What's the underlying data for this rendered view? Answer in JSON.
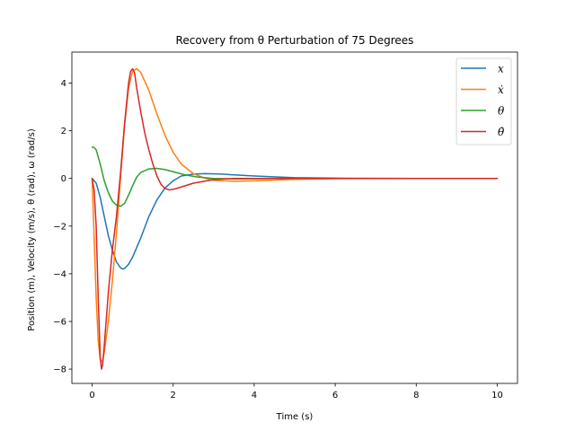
{
  "chart_data": {
    "type": "line",
    "title": "Recovery from θ Perturbation of 75 Degrees",
    "xlabel": "Time (s)",
    "ylabel": "Position (m), Velocity (m/s), θ (rad), ω (rad/s)",
    "xlim": [
      -0.5,
      10.5
    ],
    "ylim": [
      -8.6,
      5.3
    ],
    "xticks": [
      0,
      2,
      4,
      6,
      8,
      10
    ],
    "yticks": [
      -8,
      -6,
      -4,
      -2,
      0,
      2,
      4
    ],
    "xtick_labels": [
      "0",
      "2",
      "4",
      "6",
      "8",
      "10"
    ],
    "ytick_labels": [
      "−8",
      "−6",
      "−4",
      "−2",
      "0",
      "2",
      "4"
    ],
    "grid": false,
    "legend_position": "top-right",
    "series": [
      {
        "name": "x",
        "color": "#1f77b4",
        "points": [
          [
            0,
            0
          ],
          [
            0.1,
            -0.2
          ],
          [
            0.2,
            -0.8
          ],
          [
            0.3,
            -1.6
          ],
          [
            0.4,
            -2.4
          ],
          [
            0.5,
            -3.0
          ],
          [
            0.6,
            -3.5
          ],
          [
            0.7,
            -3.75
          ],
          [
            0.75,
            -3.8
          ],
          [
            0.8,
            -3.78
          ],
          [
            0.9,
            -3.6
          ],
          [
            1.0,
            -3.3
          ],
          [
            1.2,
            -2.5
          ],
          [
            1.4,
            -1.6
          ],
          [
            1.6,
            -0.9
          ],
          [
            1.8,
            -0.4
          ],
          [
            2.0,
            -0.1
          ],
          [
            2.2,
            0.1
          ],
          [
            2.5,
            0.18
          ],
          [
            2.8,
            0.2
          ],
          [
            3.2,
            0.18
          ],
          [
            4.0,
            0.1
          ],
          [
            5.0,
            0.03
          ],
          [
            6.0,
            0.01
          ],
          [
            8.0,
            0.0
          ],
          [
            10.0,
            0.0
          ]
        ]
      },
      {
        "name": "ẋ",
        "color": "#ff7f0e",
        "points": [
          [
            0,
            0
          ],
          [
            0.05,
            -2.5
          ],
          [
            0.1,
            -5.0
          ],
          [
            0.15,
            -6.8
          ],
          [
            0.2,
            -7.6
          ],
          [
            0.25,
            -7.7
          ],
          [
            0.3,
            -7.3
          ],
          [
            0.4,
            -6.0
          ],
          [
            0.5,
            -4.3
          ],
          [
            0.6,
            -2.3
          ],
          [
            0.7,
            0.0
          ],
          [
            0.8,
            2.2
          ],
          [
            0.9,
            3.8
          ],
          [
            1.0,
            4.5
          ],
          [
            1.1,
            4.6
          ],
          [
            1.2,
            4.45
          ],
          [
            1.4,
            3.7
          ],
          [
            1.6,
            2.7
          ],
          [
            1.8,
            1.8
          ],
          [
            2.0,
            1.1
          ],
          [
            2.2,
            0.6
          ],
          [
            2.5,
            0.2
          ],
          [
            2.8,
            0.0
          ],
          [
            3.0,
            -0.08
          ],
          [
            3.5,
            -0.12
          ],
          [
            4.0,
            -0.1
          ],
          [
            5.0,
            -0.04
          ],
          [
            6.0,
            -0.01
          ],
          [
            8.0,
            0.0
          ],
          [
            10.0,
            0.0
          ]
        ]
      },
      {
        "name": "θ",
        "color": "#2ca02c",
        "points": [
          [
            0,
            1.31
          ],
          [
            0.05,
            1.3
          ],
          [
            0.1,
            1.2
          ],
          [
            0.2,
            0.6
          ],
          [
            0.3,
            -0.1
          ],
          [
            0.4,
            -0.6
          ],
          [
            0.5,
            -0.95
          ],
          [
            0.6,
            -1.12
          ],
          [
            0.7,
            -1.17
          ],
          [
            0.8,
            -1.05
          ],
          [
            0.9,
            -0.7
          ],
          [
            1.0,
            -0.3
          ],
          [
            1.1,
            0.05
          ],
          [
            1.2,
            0.25
          ],
          [
            1.4,
            0.4
          ],
          [
            1.6,
            0.42
          ],
          [
            1.8,
            0.37
          ],
          [
            2.0,
            0.28
          ],
          [
            2.3,
            0.15
          ],
          [
            2.6,
            0.06
          ],
          [
            3.0,
            0.0
          ],
          [
            3.5,
            -0.02
          ],
          [
            4.0,
            -0.01
          ],
          [
            5.0,
            0.0
          ],
          [
            10.0,
            0.0
          ]
        ]
      },
      {
        "name": "θ̇",
        "color": "#d62728",
        "points": [
          [
            0,
            0
          ],
          [
            0.05,
            -0.5
          ],
          [
            0.1,
            -2.0
          ],
          [
            0.15,
            -5.0
          ],
          [
            0.2,
            -7.5
          ],
          [
            0.23,
            -8.0
          ],
          [
            0.26,
            -7.8
          ],
          [
            0.3,
            -7.0
          ],
          [
            0.4,
            -4.8
          ],
          [
            0.5,
            -3.0
          ],
          [
            0.6,
            -1.6
          ],
          [
            0.7,
            0.2
          ],
          [
            0.8,
            2.3
          ],
          [
            0.9,
            4.0
          ],
          [
            0.95,
            4.5
          ],
          [
            1.0,
            4.6
          ],
          [
            1.05,
            4.4
          ],
          [
            1.1,
            3.8
          ],
          [
            1.2,
            2.8
          ],
          [
            1.3,
            1.9
          ],
          [
            1.4,
            1.2
          ],
          [
            1.5,
            0.6
          ],
          [
            1.6,
            0.1
          ],
          [
            1.7,
            -0.25
          ],
          [
            1.8,
            -0.42
          ],
          [
            1.9,
            -0.48
          ],
          [
            2.0,
            -0.46
          ],
          [
            2.2,
            -0.36
          ],
          [
            2.5,
            -0.2
          ],
          [
            3.0,
            -0.05
          ],
          [
            3.5,
            0.0
          ],
          [
            4.0,
            0.0
          ],
          [
            10.0,
            0.0
          ]
        ]
      }
    ]
  }
}
